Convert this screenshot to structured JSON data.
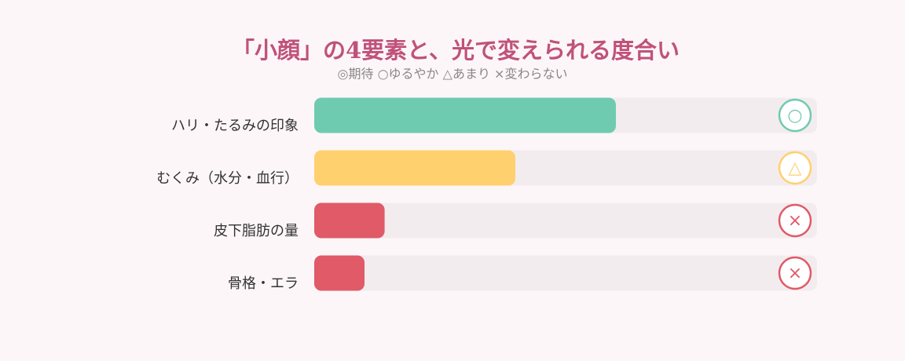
{
  "chart_data": {
    "type": "bar",
    "orientation": "horizontal",
    "title": "「小顔」の4要素と、光で変えられる度合い",
    "subtitle": "◎期待 ○ゆるやか △あまり ×変わらない",
    "categories": [
      "ハリ・たるみの印象",
      "むくみ（水分・血行）",
      "皮下脂肪の量",
      "骨格・エラ"
    ],
    "values": [
      60,
      40,
      14,
      10
    ],
    "ratings": [
      "○",
      "△",
      "×",
      "×"
    ],
    "colors": [
      "#6fcbb0",
      "#ffd06e",
      "#e05a68",
      "#e05a68"
    ],
    "xlim": [
      0,
      100
    ]
  }
}
